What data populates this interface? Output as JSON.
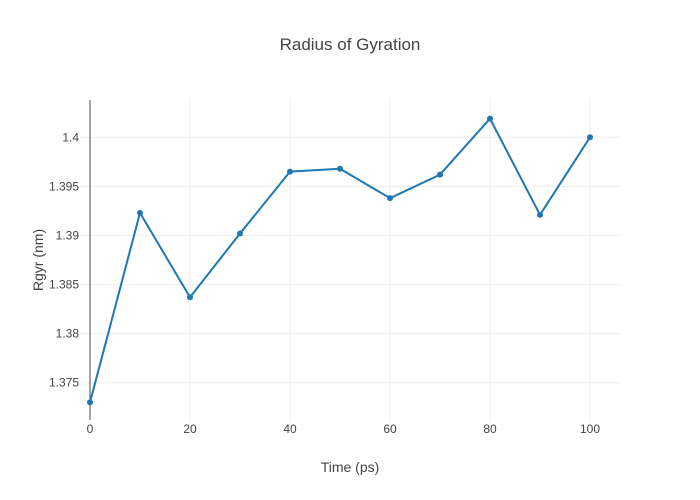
{
  "chart_data": {
    "type": "line",
    "title": "Radius of Gyration",
    "xlabel": "Time (ps)",
    "ylabel": "Rgyr (nm)",
    "x": [
      0,
      10,
      20,
      30,
      40,
      50,
      60,
      70,
      80,
      90,
      100
    ],
    "series": [
      {
        "values": [
          1.373,
          1.3923,
          1.3837,
          1.3902,
          1.3965,
          1.3968,
          1.3938,
          1.3962,
          1.4019,
          1.3921,
          1.4
        ],
        "color": "#1f77b4"
      }
    ],
    "xlim": [
      -2,
      106
    ],
    "ylim": [
      1.3712,
      1.4038
    ],
    "x_ticks": [
      0,
      20,
      40,
      60,
      80,
      100
    ],
    "x_tick_labels": [
      "0",
      "20",
      "40",
      "60",
      "80",
      "100"
    ],
    "y_ticks": [
      1.375,
      1.38,
      1.385,
      1.39,
      1.395,
      1.4
    ],
    "y_tick_labels": [
      "1.375",
      "1.38",
      "1.385",
      "1.39",
      "1.395",
      "1.4"
    ],
    "grid": true,
    "legend": "none"
  }
}
